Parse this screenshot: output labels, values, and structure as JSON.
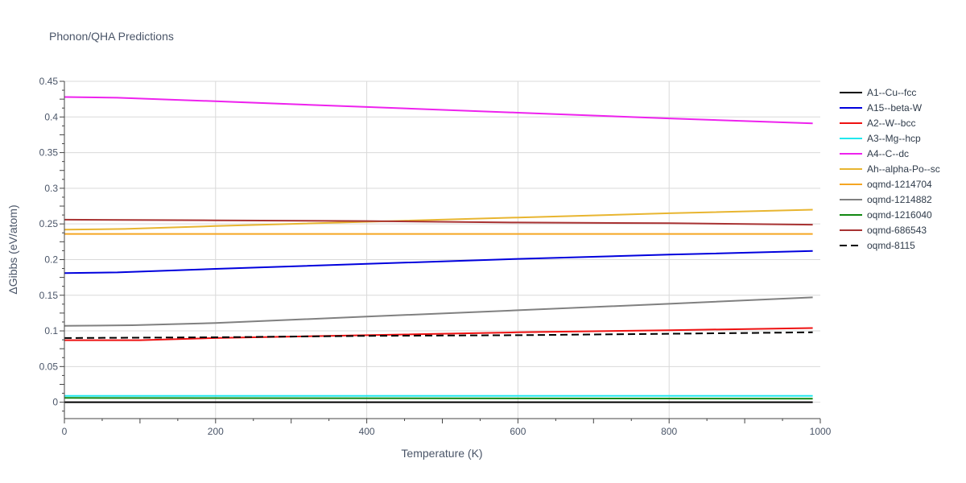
{
  "chart_data": {
    "type": "line",
    "title": "Phonon/QHA Predictions",
    "xlabel": "Temperature (K)",
    "ylabel": "ΔGibbs (eV/atom)",
    "xlim": [
      0,
      1000
    ],
    "ylim": [
      -0.023,
      0.45
    ],
    "x_ticks": [
      0,
      200,
      400,
      600,
      800,
      1000
    ],
    "y_ticks": [
      0,
      0.05,
      0.1,
      0.15,
      0.2,
      0.25,
      0.3,
      0.35,
      0.4,
      0.45
    ],
    "grid": true,
    "legend_position": "right",
    "series": [
      {
        "name": "A1--Cu--fcc",
        "color": "#000000",
        "dash": "solid",
        "x": [
          0,
          990
        ],
        "y": [
          0,
          0
        ]
      },
      {
        "name": "A15--beta-W",
        "color": "#0000dd",
        "dash": "solid",
        "x": [
          0,
          70,
          200,
          400,
          600,
          800,
          990
        ],
        "y": [
          0.181,
          0.182,
          0.187,
          0.194,
          0.201,
          0.207,
          0.212
        ]
      },
      {
        "name": "A2--W--bcc",
        "color": "#ee1111",
        "dash": "solid",
        "x": [
          0,
          100,
          200,
          400,
          600,
          800,
          990
        ],
        "y": [
          0.087,
          0.087,
          0.09,
          0.094,
          0.098,
          0.101,
          0.104
        ]
      },
      {
        "name": "A3--Mg--hcp",
        "color": "#22e8ee",
        "dash": "solid",
        "x": [
          0,
          990
        ],
        "y": [
          0.009,
          0.009
        ]
      },
      {
        "name": "A4--C--dc",
        "color": "#ee22ee",
        "dash": "solid",
        "x": [
          0,
          70,
          200,
          400,
          600,
          800,
          990
        ],
        "y": [
          0.428,
          0.427,
          0.422,
          0.414,
          0.406,
          0.398,
          0.391
        ]
      },
      {
        "name": "Ah--alpha-Po--sc",
        "color": "#e8b530",
        "dash": "solid",
        "x": [
          0,
          80,
          200,
          400,
          600,
          800,
          990
        ],
        "y": [
          0.242,
          0.243,
          0.247,
          0.253,
          0.259,
          0.265,
          0.27
        ]
      },
      {
        "name": "oqmd-1214704",
        "color": "#f5a623",
        "dash": "solid",
        "x": [
          0,
          990
        ],
        "y": [
          0.236,
          0.236
        ]
      },
      {
        "name": "oqmd-1214882",
        "color": "#808080",
        "dash": "solid",
        "x": [
          0,
          90,
          200,
          400,
          600,
          800,
          990
        ],
        "y": [
          0.107,
          0.108,
          0.111,
          0.12,
          0.129,
          0.138,
          0.147
        ]
      },
      {
        "name": "oqmd-1216040",
        "color": "#118811",
        "dash": "solid",
        "x": [
          0,
          990
        ],
        "y": [
          0.006,
          0.005
        ]
      },
      {
        "name": "oqmd-686543",
        "color": "#a83232",
        "dash": "solid",
        "x": [
          0,
          200,
          400,
          600,
          800,
          990
        ],
        "y": [
          0.256,
          0.255,
          0.254,
          0.252,
          0.251,
          0.249
        ]
      },
      {
        "name": "oqmd-8115",
        "color": "#000000",
        "dash": "dash",
        "x": [
          0,
          200,
          400,
          600,
          800,
          990
        ],
        "y": [
          0.09,
          0.091,
          0.093,
          0.094,
          0.096,
          0.098
        ]
      }
    ]
  }
}
